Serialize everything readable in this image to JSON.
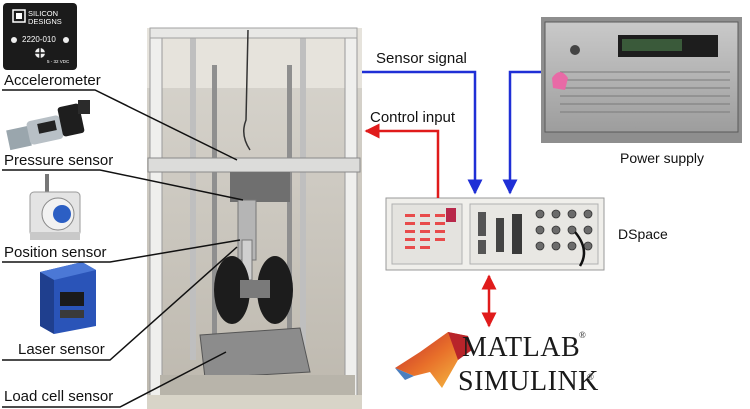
{
  "sensors": {
    "accelerometer": {
      "label": "Accelerometer",
      "brand_line1": "SILICON",
      "brand_line2": "DESIGNS",
      "model": "2220-010",
      "voltage": "5 - 32 VDC"
    },
    "pressure": {
      "label": "Pressure sensor"
    },
    "position": {
      "label": "Position sensor"
    },
    "laser": {
      "label": "Laser sensor"
    },
    "load_cell": {
      "label": "Load cell sensor"
    }
  },
  "signals": {
    "sensor_signal": "Sensor signal",
    "control_input": "Control input"
  },
  "devices": {
    "power_supply": "Power supply",
    "dspace": "DSpace"
  },
  "software": {
    "matlab": "MATLAB",
    "simulink": "SIMULINK",
    "reg": "®"
  },
  "colors": {
    "sensor_signal": "#1f2fd6",
    "control_input": "#e01b1b",
    "matlab_orange": "#e8702a",
    "sensor_blue": "#2a54b8"
  }
}
